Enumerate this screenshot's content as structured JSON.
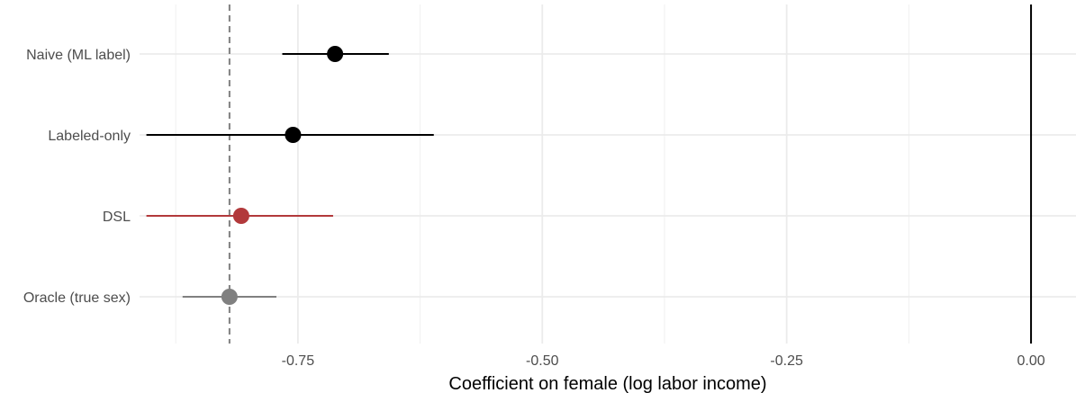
{
  "chart_data": {
    "type": "scatter",
    "subtype": "coefficient-plot",
    "title": "",
    "xlabel": "Coefficient on female (log labor income)",
    "ylabel": "",
    "xlim": [
      -0.912,
      0.046
    ],
    "x_ticks": [
      -0.75,
      -0.5,
      -0.25,
      0.0
    ],
    "x_tick_labels": [
      "-0.75",
      "-0.50",
      "-0.25",
      "0.00"
    ],
    "x_minor_ticks": [
      -0.875,
      -0.625,
      -0.375,
      -0.125
    ],
    "grid": true,
    "legend": "none",
    "categories": [
      "Naive (ML label)",
      "Labeled-only",
      "DSL",
      "Oracle (true sex)"
    ],
    "points": [
      {
        "label": "Naive (ML label)",
        "estimate": -0.712,
        "ci_low": -0.766,
        "ci_high": -0.657,
        "color": "#000000"
      },
      {
        "label": "Labeled-only",
        "estimate": -0.755,
        "ci_low": -0.905,
        "ci_high": -0.611,
        "color": "#000000"
      },
      {
        "label": "DSL",
        "estimate": -0.808,
        "ci_low": -0.905,
        "ci_high": -0.714,
        "color": "#b2393b"
      },
      {
        "label": "Oracle (true sex)",
        "estimate": -0.82,
        "ci_low": -0.868,
        "ci_high": -0.772,
        "color": "#808080"
      }
    ],
    "reference_lines": [
      {
        "x": 0.0,
        "style": "solid",
        "color": "#000000"
      },
      {
        "x": -0.82,
        "style": "dashed",
        "color": "#808080"
      }
    ]
  }
}
